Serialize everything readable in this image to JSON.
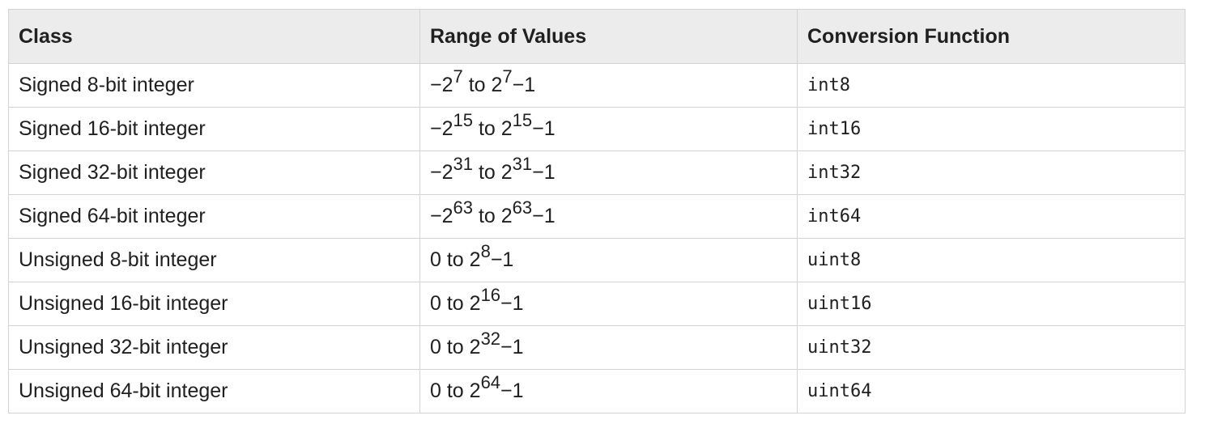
{
  "table": {
    "headers": [
      "Class",
      "Range of Values",
      "Conversion Function"
    ],
    "rows": [
      {
        "class": "Signed 8-bit integer",
        "range": {
          "p1": "−2",
          "e1": "7",
          "p2": " to 2",
          "e2": "7",
          "p3": "−1"
        },
        "func": "int8"
      },
      {
        "class": "Signed 16-bit integer",
        "range": {
          "p1": "−2",
          "e1": "15",
          "p2": " to 2",
          "e2": "15",
          "p3": "−1"
        },
        "func": "int16"
      },
      {
        "class": "Signed 32-bit integer",
        "range": {
          "p1": "−2",
          "e1": "31",
          "p2": " to 2",
          "e2": "31",
          "p3": "−1"
        },
        "func": "int32"
      },
      {
        "class": "Signed 64-bit integer",
        "range": {
          "p1": "−2",
          "e1": "63",
          "p2": " to 2",
          "e2": "63",
          "p3": "−1"
        },
        "func": "int64"
      },
      {
        "class": "Unsigned 8-bit integer",
        "range": {
          "p1": "0 to 2",
          "e1": "8",
          "p2": "−1"
        },
        "func": "uint8"
      },
      {
        "class": "Unsigned 16-bit integer",
        "range": {
          "p1": "0 to 2",
          "e1": "16",
          "p2": "−1"
        },
        "func": "uint16"
      },
      {
        "class": "Unsigned 32-bit integer",
        "range": {
          "p1": "0 to 2",
          "e1": "32",
          "p2": "−1"
        },
        "func": "uint32"
      },
      {
        "class": "Unsigned 64-bit integer",
        "range": {
          "p1": "0 to 2",
          "e1": "64",
          "p2": "−1"
        },
        "func": "uint64"
      }
    ]
  }
}
